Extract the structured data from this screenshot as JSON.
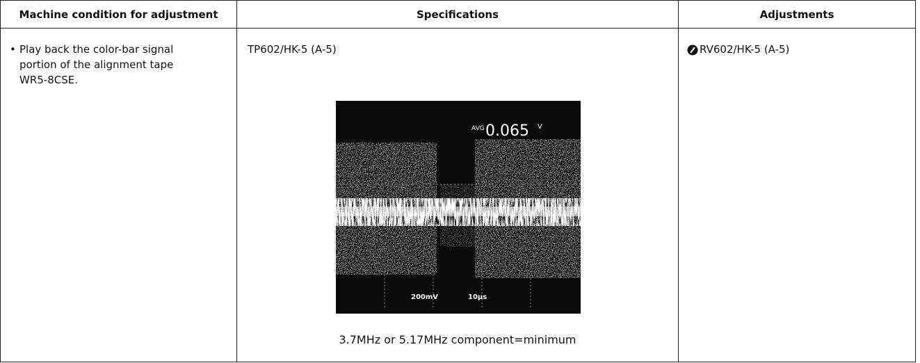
{
  "table": {
    "headers": [
      "Machine condition for adjustment",
      "Specifications",
      "Adjustments"
    ],
    "rows": [
      [
        "Play back the color-bar signal portion of the alignment tape WR5-8CSE.",
        "TP602/HK-5 (A-5)",
        "RV602/HK-5 (A-5)"
      ]
    ]
  },
  "scope": {
    "readout_label": "AVG",
    "readout": "0.065",
    "readout_unit": "V",
    "volts_div": "200mV",
    "time_div": "10μs"
  },
  "caption": "3.7MHz or 5.17MHz component=minimum"
}
